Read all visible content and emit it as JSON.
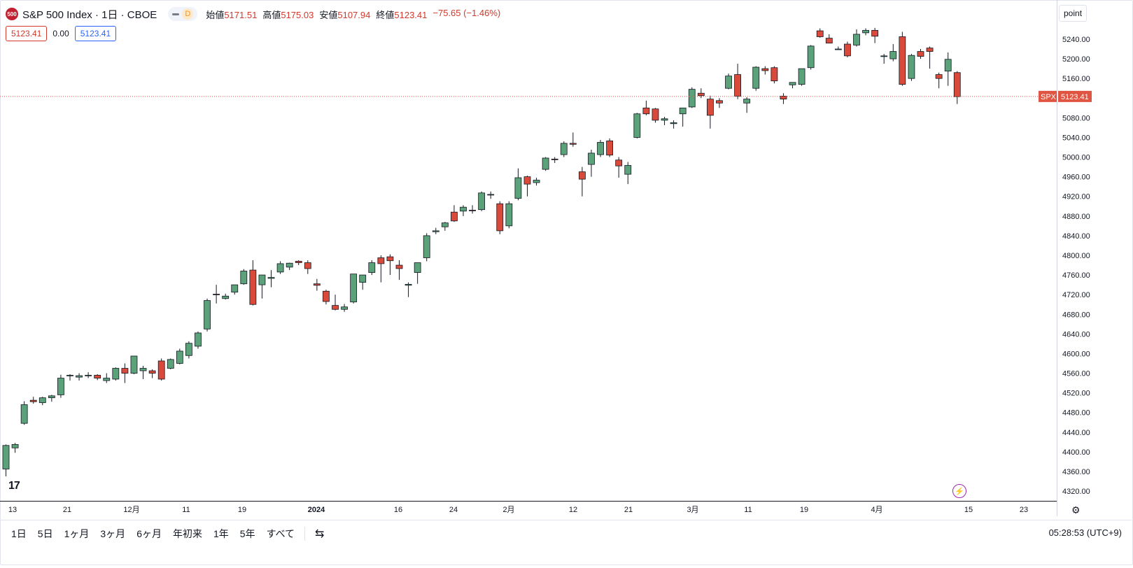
{
  "header": {
    "logo_text": "500",
    "symbol_line": "S&P 500 Index · 1日 · CBOE",
    "interval_badge": "D",
    "open_label": "始値",
    "open_value": "5171.51",
    "high_label": "高値",
    "high_value": "5175.03",
    "low_label": "安値",
    "low_value": "5107.94",
    "close_label": "終値",
    "close_value": "5123.41",
    "change": "−75.65 (−1.46%)"
  },
  "quote_row": {
    "bid": "5123.41",
    "spread": "0.00",
    "ask": "5123.41"
  },
  "unit_button": "point",
  "price_tag": {
    "symbol": "SPX",
    "value": "5123.41"
  },
  "x_ticks": [
    "13",
    "21",
    "12月",
    "11",
    "19",
    "2024",
    "16",
    "24",
    "2月",
    "12",
    "21",
    "3月",
    "11",
    "19",
    "4月",
    "15",
    "23"
  ],
  "range_buttons": [
    "1日",
    "5日",
    "1ヶ月",
    "3ヶ月",
    "6ヶ月",
    "年初来",
    "1年",
    "5年",
    "すべて"
  ],
  "clock": "05:28:53 (UTC+9)",
  "colors": {
    "up": "#5ba27a",
    "down": "#d94a3b",
    "price_line": "#e05542"
  },
  "chart_data": {
    "type": "candlestick",
    "y_axis": {
      "position": "right",
      "ticks": [
        4320,
        4360,
        4400,
        4440,
        4480,
        4520,
        4560,
        4600,
        4640,
        4680,
        4720,
        4760,
        4800,
        4840,
        4880,
        4920,
        4960,
        5000,
        5040,
        5080,
        5120,
        5160,
        5200,
        5240
      ],
      "range": [
        4305,
        5275
      ]
    },
    "last_price": 5123.41,
    "candles": [
      [
        4365,
        4415,
        4350,
        4413
      ],
      [
        4408,
        4418,
        4398,
        4415
      ],
      [
        4458,
        4503,
        4455,
        4496
      ],
      [
        4505,
        4512,
        4498,
        4502
      ],
      [
        4500,
        4512,
        4495,
        4510
      ],
      [
        4510,
        4516,
        4502,
        4514
      ],
      [
        4516,
        4557,
        4510,
        4550
      ],
      [
        4555,
        4558,
        4545,
        4556
      ],
      [
        4552,
        4560,
        4545,
        4555
      ],
      [
        4555,
        4562,
        4550,
        4556
      ],
      [
        4556,
        4558,
        4546,
        4550
      ],
      [
        4545,
        4560,
        4540,
        4550
      ],
      [
        4548,
        4572,
        4545,
        4570
      ],
      [
        4570,
        4580,
        4540,
        4560
      ],
      [
        4560,
        4595,
        4558,
        4595
      ],
      [
        4565,
        4575,
        4548,
        4570
      ],
      [
        4565,
        4568,
        4550,
        4560
      ],
      [
        4585,
        4590,
        4545,
        4548
      ],
      [
        4570,
        4590,
        4568,
        4588
      ],
      [
        4580,
        4610,
        4578,
        4605
      ],
      [
        4596,
        4625,
        4590,
        4621
      ],
      [
        4615,
        4645,
        4610,
        4642
      ],
      [
        4650,
        4712,
        4645,
        4708
      ],
      [
        4721,
        4740,
        4702,
        4720
      ],
      [
        4712,
        4722,
        4710,
        4717
      ],
      [
        4725,
        4740,
        4720,
        4740
      ],
      [
        4742,
        4772,
        4740,
        4768
      ],
      [
        4770,
        4790,
        4698,
        4700
      ],
      [
        4740,
        4760,
        4712,
        4760
      ],
      [
        4753,
        4770,
        4735,
        4755
      ],
      [
        4766,
        4788,
        4762,
        4783
      ],
      [
        4776,
        4785,
        4770,
        4784
      ],
      [
        4788,
        4790,
        4780,
        4785
      ],
      [
        4785,
        4790,
        4762,
        4773
      ],
      [
        4742,
        4752,
        4728,
        4739
      ],
      [
        4727,
        4730,
        4700,
        4706
      ],
      [
        4698,
        4720,
        4688,
        4690
      ],
      [
        4690,
        4701,
        4685,
        4695
      ],
      [
        4705,
        4762,
        4702,
        4762
      ],
      [
        4745,
        4760,
        4730,
        4760
      ],
      [
        4765,
        4790,
        4760,
        4785
      ],
      [
        4795,
        4800,
        4745,
        4783
      ],
      [
        4797,
        4802,
        4760,
        4789
      ],
      [
        4780,
        4790,
        4750,
        4773
      ],
      [
        4739,
        4745,
        4715,
        4741
      ],
      [
        4765,
        4785,
        4742,
        4785
      ],
      [
        4795,
        4845,
        4788,
        4840
      ],
      [
        4848,
        4856,
        4843,
        4850
      ],
      [
        4858,
        4868,
        4850,
        4866
      ],
      [
        4888,
        4902,
        4868,
        4870
      ],
      [
        4890,
        4902,
        4880,
        4898
      ],
      [
        4892,
        4902,
        4885,
        4891
      ],
      [
        4893,
        4930,
        4890,
        4927
      ],
      [
        4924,
        4930,
        4915,
        4924
      ],
      [
        4905,
        4910,
        4843,
        4850
      ],
      [
        4860,
        4910,
        4855,
        4905
      ],
      [
        4916,
        4977,
        4912,
        4958
      ],
      [
        4960,
        4962,
        4920,
        4945
      ],
      [
        4948,
        4958,
        4942,
        4953
      ],
      [
        4975,
        5000,
        4972,
        4998
      ],
      [
        4996,
        5000,
        4988,
        4995
      ],
      [
        5005,
        5032,
        5000,
        5028
      ],
      [
        5028,
        5050,
        5021,
        5026
      ],
      [
        4970,
        4980,
        4920,
        4955
      ],
      [
        4985,
        5015,
        4960,
        5008
      ],
      [
        5005,
        5035,
        5000,
        5030
      ],
      [
        5033,
        5038,
        5000,
        5004
      ],
      [
        4994,
        5000,
        4958,
        4982
      ],
      [
        4965,
        4990,
        4945,
        4983
      ],
      [
        5040,
        5090,
        5038,
        5088
      ],
      [
        5100,
        5115,
        5085,
        5088
      ],
      [
        5098,
        5100,
        5070,
        5075
      ],
      [
        5075,
        5082,
        5065,
        5078
      ],
      [
        5068,
        5075,
        5058,
        5070
      ],
      [
        5088,
        5100,
        5062,
        5100
      ],
      [
        5102,
        5142,
        5100,
        5138
      ],
      [
        5130,
        5140,
        5120,
        5125
      ],
      [
        5118,
        5125,
        5058,
        5085
      ],
      [
        5115,
        5120,
        5100,
        5110
      ],
      [
        5140,
        5170,
        5138,
        5165
      ],
      [
        5168,
        5190,
        5118,
        5124
      ],
      [
        5110,
        5122,
        5090,
        5118
      ],
      [
        5140,
        5185,
        5135,
        5183
      ],
      [
        5180,
        5185,
        5168,
        5176
      ],
      [
        5182,
        5185,
        5150,
        5155
      ],
      [
        5124,
        5130,
        5108,
        5118
      ],
      [
        5147,
        5150,
        5140,
        5152
      ],
      [
        5148,
        5180,
        5145,
        5180
      ],
      [
        5182,
        5228,
        5178,
        5226
      ],
      [
        5257,
        5262,
        5243,
        5245
      ],
      [
        5242,
        5250,
        5233,
        5232
      ],
      [
        5220,
        5225,
        5218,
        5220
      ],
      [
        5230,
        5235,
        5203,
        5206
      ],
      [
        5228,
        5260,
        5225,
        5250
      ],
      [
        5253,
        5262,
        5248,
        5258
      ],
      [
        5258,
        5263,
        5232,
        5246
      ],
      [
        5205,
        5210,
        5190,
        5206
      ],
      [
        5200,
        5230,
        5195,
        5215
      ],
      [
        5245,
        5255,
        5145,
        5148
      ],
      [
        5160,
        5210,
        5155,
        5207
      ],
      [
        5215,
        5220,
        5200,
        5205
      ],
      [
        5222,
        5225,
        5180,
        5215
      ],
      [
        5168,
        5172,
        5140,
        5160
      ],
      [
        5175,
        5213,
        5145,
        5199
      ],
      [
        5172,
        5175,
        5108,
        5123
      ]
    ]
  }
}
